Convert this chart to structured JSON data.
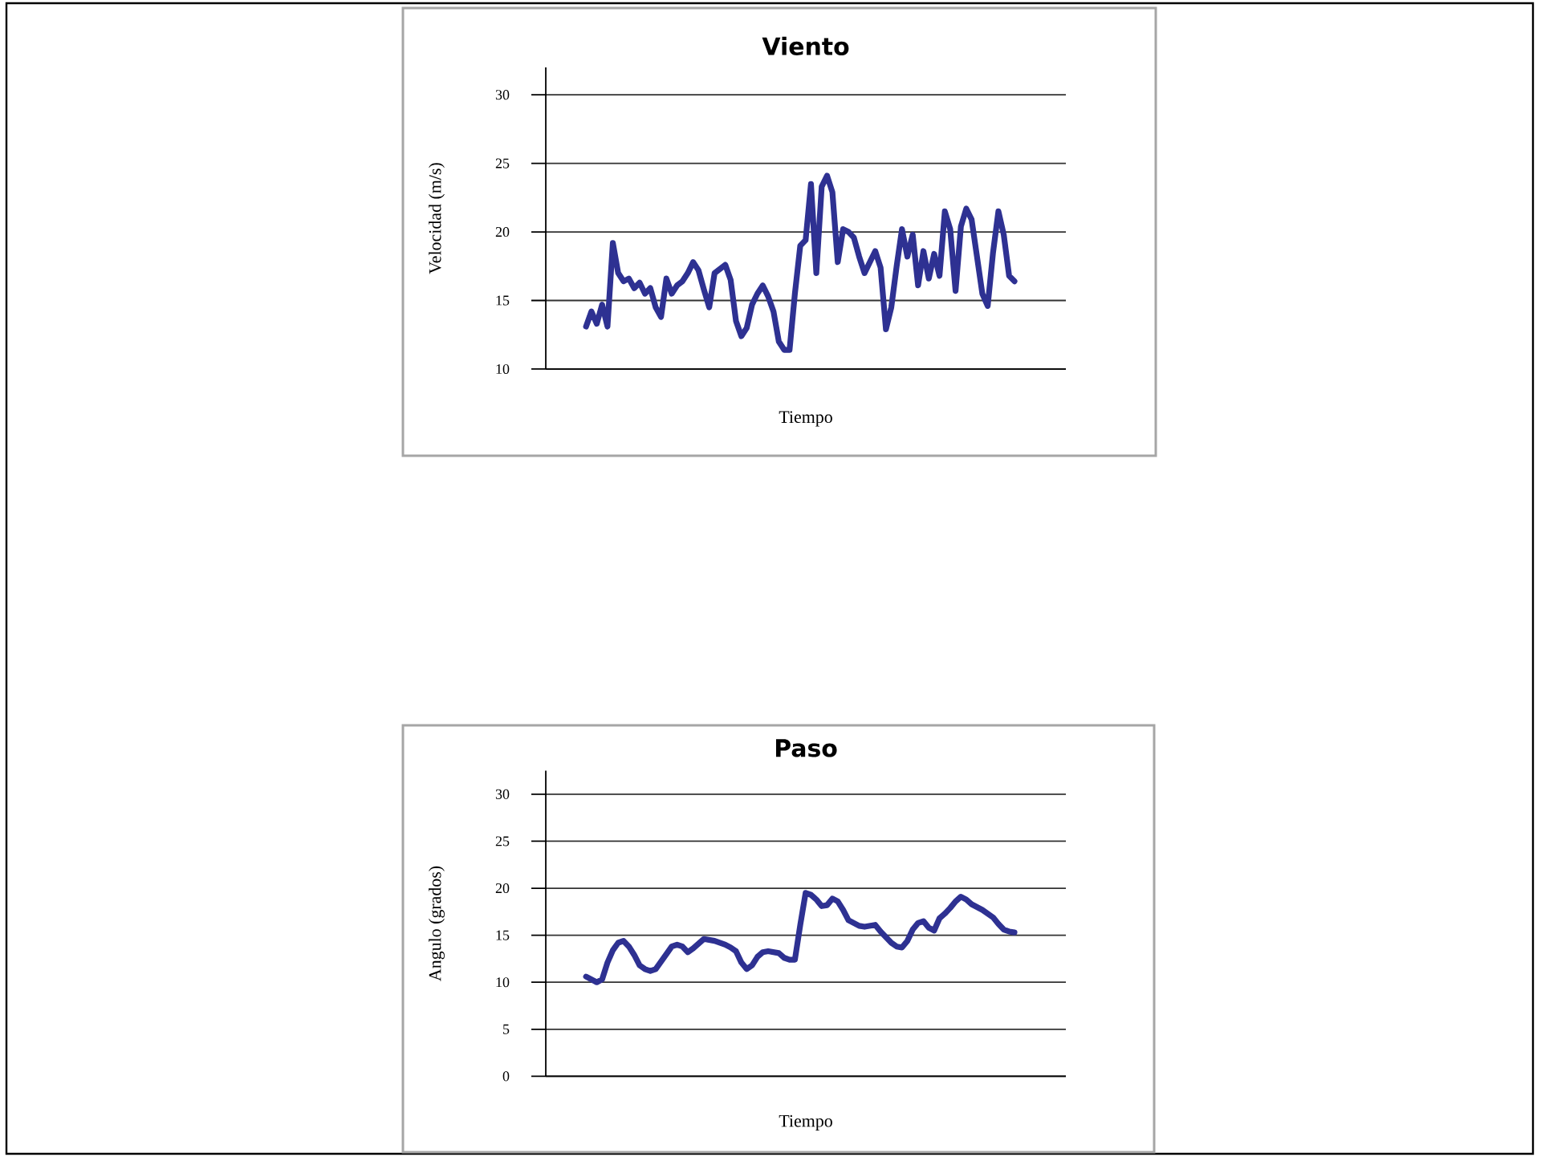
{
  "chart_data": [
    {
      "type": "line",
      "title": "Viento",
      "xlabel": "Tiempo",
      "ylabel": "Velocidad (m/s)",
      "categories": [
        null,
        null,
        null,
        null,
        null,
        null,
        null,
        null,
        null,
        null,
        null,
        null,
        null,
        null,
        null,
        null,
        null,
        null,
        null,
        null,
        null,
        null,
        null,
        null,
        null,
        null,
        null,
        null,
        null,
        null,
        null,
        null,
        null,
        null,
        null,
        null,
        null,
        null,
        null,
        null,
        null,
        null,
        null,
        null,
        null,
        null,
        null,
        null,
        null,
        null,
        null,
        null,
        null,
        null,
        null,
        null,
        null,
        null,
        null,
        null,
        null,
        null,
        null,
        null,
        null,
        null,
        null,
        null,
        null,
        null,
        null,
        null,
        null,
        null,
        null,
        null,
        null,
        null,
        null,
        null,
        null
      ],
      "series": [
        {
          "color": "#2e3192",
          "values": [
            13.1,
            14.2,
            13.3,
            14.7,
            13.1,
            19.2,
            17.0,
            16.4,
            16.6,
            15.9,
            16.3,
            15.5,
            15.9,
            14.5,
            13.8,
            16.6,
            15.5,
            16.1,
            16.4,
            17.0,
            17.8,
            17.2,
            15.8,
            14.5,
            17.0,
            17.3,
            17.6,
            16.5,
            13.5,
            12.4,
            13.0,
            14.7,
            15.5,
            16.1,
            15.3,
            14.2,
            12.0,
            11.4,
            11.4,
            15.5,
            19.0,
            19.4,
            23.5,
            17.0,
            23.3,
            24.1,
            22.9,
            17.8,
            20.2,
            20.0,
            19.6,
            18.2,
            17.0,
            17.8,
            18.6,
            17.4,
            12.9,
            14.5,
            17.5,
            20.2,
            18.2,
            19.8,
            16.1,
            18.6,
            16.6,
            18.4,
            16.8,
            21.5,
            20.2,
            15.7,
            20.4,
            21.7,
            20.9,
            18.2,
            15.5,
            14.6,
            18.5,
            21.5,
            19.8,
            16.8,
            16.4
          ]
        }
      ],
      "ylim": [
        10,
        32
      ],
      "yticks": [
        10,
        15,
        20,
        25,
        30
      ],
      "grid": "y",
      "tick_labels": "y"
    },
    {
      "type": "line",
      "title": "Paso",
      "xlabel": "Tiempo",
      "ylabel": "Angulo (grados)",
      "categories": [
        null,
        null,
        null,
        null,
        null,
        null,
        null,
        null,
        null,
        null,
        null,
        null,
        null,
        null,
        null,
        null,
        null,
        null,
        null,
        null,
        null,
        null,
        null,
        null,
        null,
        null,
        null,
        null,
        null,
        null,
        null,
        null,
        null,
        null,
        null,
        null,
        null,
        null,
        null,
        null,
        null,
        null,
        null,
        null,
        null,
        null,
        null,
        null,
        null,
        null,
        null,
        null,
        null,
        null,
        null,
        null,
        null,
        null,
        null,
        null,
        null,
        null,
        null,
        null,
        null,
        null,
        null,
        null,
        null,
        null,
        null,
        null,
        null,
        null,
        null,
        null,
        null,
        null,
        null,
        null,
        null
      ],
      "series": [
        {
          "color": "#2e3192",
          "values": [
            10.6,
            10.3,
            10.0,
            10.3,
            12.1,
            13.4,
            14.2,
            14.4,
            13.8,
            12.9,
            11.8,
            11.4,
            11.2,
            11.4,
            12.2,
            13.0,
            13.8,
            14.0,
            13.8,
            13.2,
            13.6,
            14.1,
            14.6,
            14.5,
            14.4,
            14.2,
            14.0,
            13.7,
            13.3,
            12.1,
            11.4,
            11.8,
            12.7,
            13.2,
            13.3,
            13.2,
            13.1,
            12.6,
            12.4,
            12.4,
            16.1,
            19.5,
            19.3,
            18.8,
            18.1,
            18.2,
            18.9,
            18.6,
            17.7,
            16.6,
            16.3,
            16.0,
            15.9,
            16.0,
            16.1,
            15.4,
            14.8,
            14.2,
            13.8,
            13.7,
            14.4,
            15.6,
            16.3,
            16.5,
            15.8,
            15.5,
            16.8,
            17.3,
            17.9,
            18.6,
            19.1,
            18.8,
            18.3,
            18.0,
            17.7,
            17.3,
            16.9,
            16.2,
            15.6,
            15.4,
            15.3
          ]
        }
      ],
      "ylim": [
        0,
        32.5
      ],
      "yticks": [
        0,
        5,
        10,
        15,
        20,
        25,
        30
      ],
      "grid": "y",
      "tick_labels": "y"
    }
  ]
}
